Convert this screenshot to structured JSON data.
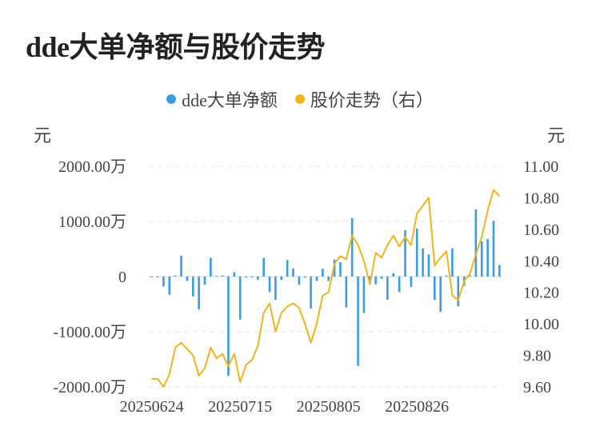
{
  "title": "dde大单净额与股价走势",
  "colors": {
    "bar": "#3a9de2",
    "line": "#f2b41c",
    "grid": "#e6e6e6"
  },
  "legend": [
    {
      "label": "dde大单净额",
      "color": "#3a9de2"
    },
    {
      "label": "股价走势（右）",
      "color": "#f2b41c"
    }
  ],
  "chart_data": {
    "type": "bar+line",
    "left_unit": "元",
    "right_unit": "元",
    "left_ticks": [
      {
        "value": 2000,
        "label": "2000.00万"
      },
      {
        "value": 1000,
        "label": "1000.00万"
      },
      {
        "value": 0,
        "label": "0"
      },
      {
        "value": -1000,
        "label": "-1000.00万"
      },
      {
        "value": -2000,
        "label": "-2000.00万"
      }
    ],
    "right_ticks": [
      {
        "value": 11.0,
        "label": "11.00"
      },
      {
        "value": 10.8,
        "label": "10.80"
      },
      {
        "value": 10.6,
        "label": "10.60"
      },
      {
        "value": 10.4,
        "label": "10.40"
      },
      {
        "value": 10.2,
        "label": "10.20"
      },
      {
        "value": 10.0,
        "label": "10.00"
      },
      {
        "value": 9.8,
        "label": "9.80"
      },
      {
        "value": 9.6,
        "label": "9.60"
      }
    ],
    "ylim_left": [
      -2000,
      2000
    ],
    "ylim_right": [
      9.6,
      11.0
    ],
    "x_tick_labels": [
      {
        "index": 0,
        "label": "20250624"
      },
      {
        "index": 15,
        "label": "20250715"
      },
      {
        "index": 30,
        "label": "20250805"
      },
      {
        "index": 45,
        "label": "20250826"
      }
    ],
    "series": [
      {
        "name": "dde大单净额",
        "type": "bar",
        "values": [
          0,
          0,
          -180,
          -330,
          20,
          380,
          -80,
          -360,
          -600,
          -150,
          340,
          10,
          20,
          -1800,
          80,
          -780,
          -20,
          -10,
          -60,
          340,
          -280,
          -420,
          -60,
          300,
          150,
          -150,
          -20,
          -580,
          -80,
          140,
          -80,
          310,
          260,
          -560,
          1060,
          -1620,
          -660,
          -60,
          -140,
          -40,
          -420,
          60,
          -280,
          840,
          -190,
          870,
          510,
          400,
          -420,
          -640,
          20,
          510,
          -540,
          -170,
          20,
          1220,
          640,
          680,
          1010,
          210
        ]
      },
      {
        "name": "股价走势（右）",
        "type": "line",
        "values": [
          9.65,
          9.65,
          9.6,
          9.68,
          9.85,
          9.88,
          9.84,
          9.8,
          9.67,
          9.72,
          9.85,
          9.78,
          9.81,
          9.73,
          9.81,
          9.63,
          9.74,
          9.77,
          9.86,
          10.07,
          10.13,
          9.95,
          10.07,
          10.11,
          10.13,
          10.1,
          10.0,
          9.88,
          10.0,
          10.18,
          10.2,
          10.38,
          10.43,
          10.41,
          10.56,
          10.5,
          10.4,
          10.25,
          10.45,
          10.42,
          10.5,
          10.56,
          10.49,
          10.55,
          10.5,
          10.7,
          10.75,
          10.8,
          10.37,
          10.42,
          10.46,
          10.18,
          10.15,
          10.27,
          10.32,
          10.44,
          10.55,
          10.72,
          10.85,
          10.81
        ]
      }
    ]
  }
}
